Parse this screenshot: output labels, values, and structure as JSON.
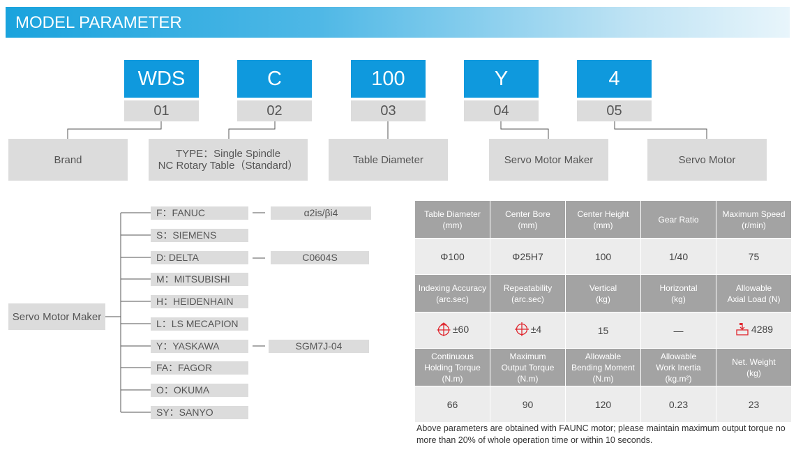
{
  "header": {
    "title": "MODEL PARAMETER"
  },
  "model_code": [
    {
      "code": "WDS",
      "index": "01",
      "description": "Brand"
    },
    {
      "code": "C",
      "index": "02",
      "description": "TYPE：Single Spindle\nNC Rotary Table（Standard）"
    },
    {
      "code": "100",
      "index": "03",
      "description": "Table Diameter"
    },
    {
      "code": "Y",
      "index": "04",
      "description": "Servo Motor Maker"
    },
    {
      "code": "4",
      "index": "05",
      "description": "Servo Motor"
    }
  ],
  "servo_makers": {
    "label": "Servo Motor Maker",
    "items": [
      {
        "name": "F：FANUC",
        "model": "α2is/βi4"
      },
      {
        "name": "S：SIEMENS",
        "model": ""
      },
      {
        "name": "D: DELTA",
        "model": "C0604S"
      },
      {
        "name": "M：MITSUBISHI",
        "model": ""
      },
      {
        "name": "H：HEIDENHAIN",
        "model": ""
      },
      {
        "name": "L：LS MECAPION",
        "model": ""
      },
      {
        "name": "Y：YASKAWA",
        "model": "SGM7J-04"
      },
      {
        "name": "FA：FAGOR",
        "model": ""
      },
      {
        "name": "O：OKUMA",
        "model": ""
      },
      {
        "name": "SY：SANYO",
        "model": ""
      }
    ]
  },
  "parameters": {
    "rows": [
      {
        "headers": [
          "Table Diameter\n(mm)",
          "Center Bore\n(mm)",
          "Center Height\n(mm)",
          "Gear Ratio",
          "Maximum  Speed\n(r/min)"
        ],
        "values": [
          "Φ100",
          "Φ25H7",
          "100",
          "1/40",
          "75"
        ]
      },
      {
        "headers": [
          "Indexing Accuracy\n(arc.sec)",
          "Repeatability\n(arc.sec)",
          "Vertical\n(kg)",
          "Horizontal\n(kg)",
          "Allowable\nAxial Load (N)"
        ],
        "values": [
          "±60",
          "±4",
          "15",
          "—",
          "4289"
        ]
      },
      {
        "headers": [
          "Continuous\nHolding Torque\n(N.m)",
          "Maximum\nOutput Torque\n(N.m)",
          "Allowable\nBending Moment\n(N.m)",
          "Allowable\nWork Inertia\n(kg.m²)",
          "Net. Weight\n(kg)"
        ],
        "values": [
          "66",
          "90",
          "120",
          "0.23",
          "23"
        ]
      }
    ],
    "icons": {
      "indexing": "indexing-accuracy-icon",
      "repeatability": "repeatability-icon",
      "axial_load": "axial-load-icon"
    },
    "icon_color": "#e0242c"
  },
  "footnote": "Above parameters are obtained with FAUNC motor; please maintain maximum output torque no more than 20% of whole operation time or within 10 seconds."
}
